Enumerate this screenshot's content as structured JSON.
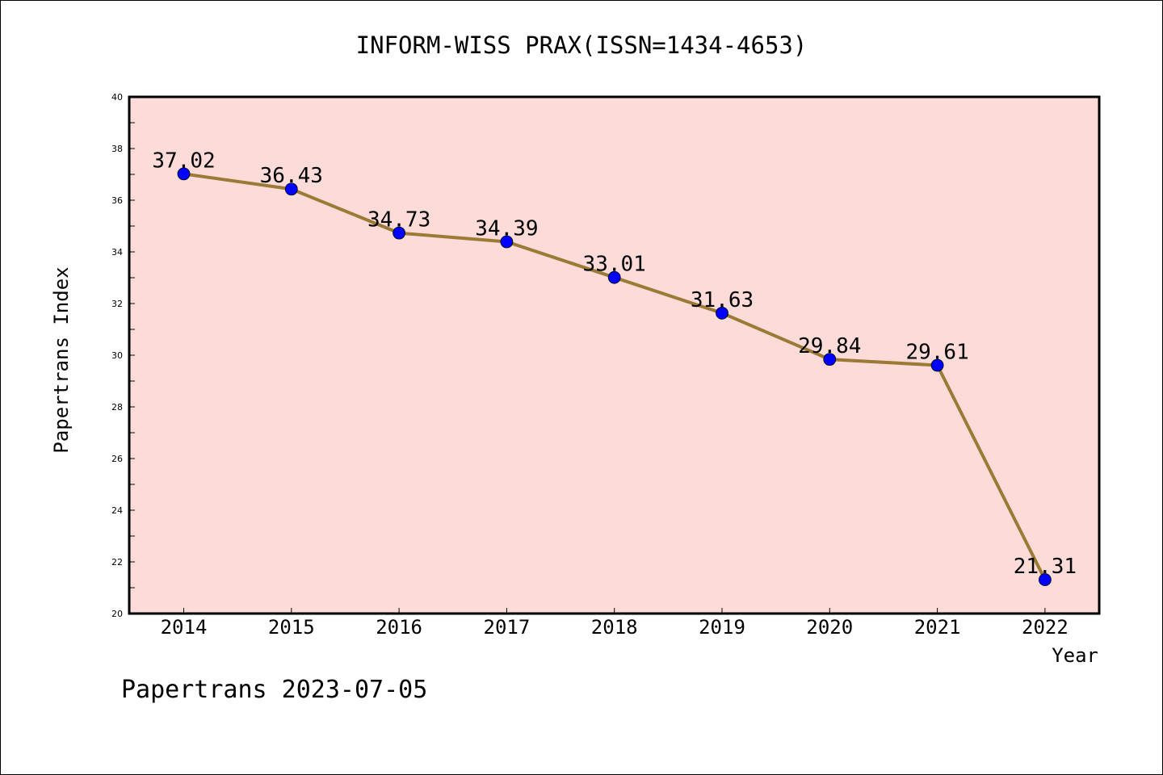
{
  "chart_data": {
    "type": "line",
    "title": "INFORM-WISS PRAX(ISSN=1434-4653)",
    "xlabel": "Year",
    "ylabel": "Papertrans Index",
    "categories": [
      "2014",
      "2015",
      "2016",
      "2017",
      "2018",
      "2019",
      "2020",
      "2021",
      "2022"
    ],
    "series": [
      {
        "values": [
          37.02,
          36.43,
          34.73,
          34.39,
          33.01,
          31.63,
          29.84,
          29.61,
          21.31
        ],
        "labels": [
          "37.02",
          "36.43",
          "34.73",
          "34.39",
          "33.01",
          "31.63",
          "29.84",
          "29.61",
          "21.31"
        ]
      }
    ],
    "ylim": [
      20,
      40
    ],
    "yticks": [
      "20",
      "22",
      "24",
      "26",
      "28",
      "30",
      "32",
      "34",
      "36",
      "38",
      "40"
    ],
    "grid": false,
    "colors": {
      "plot_background": "#fddbd9",
      "line": "#9a7a34",
      "marker": "#0000ff"
    }
  },
  "footer": {
    "caption": "Papertrans 2023-07-05"
  }
}
